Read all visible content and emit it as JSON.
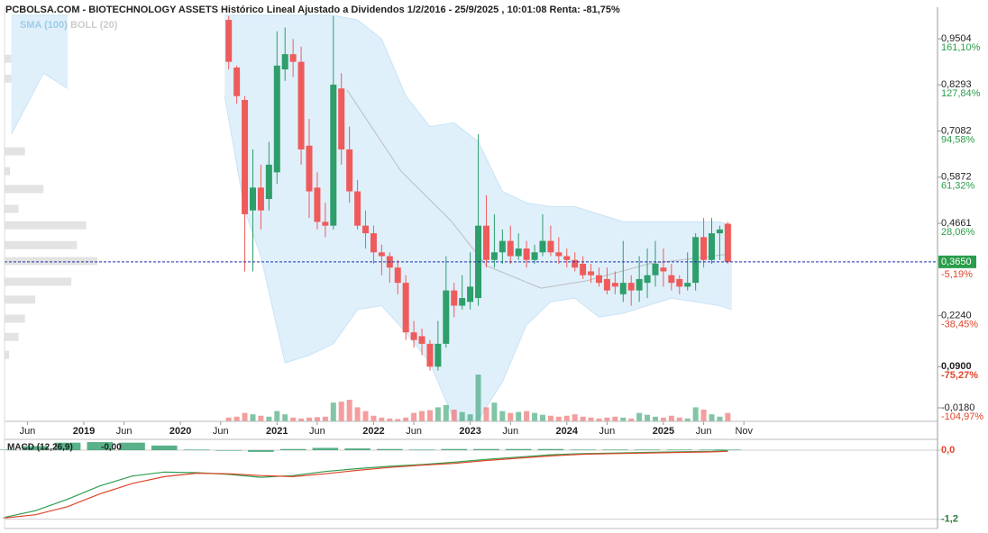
{
  "chart_data": {
    "type": "candlestick",
    "title": "PCBOLSA.COM - BIOTECHNOLOGY ASSETS Histórico Lineal Ajustado a Dividendos 1/2/2016 - 25/9/2025 , 10:01:08 Renta: -81,75%",
    "up_color": "#2e9e6a",
    "down_color": "#ef5b5b",
    "x": [
      18,
      19,
      20,
      21,
      22,
      23,
      24,
      25,
      26,
      27,
      28,
      29,
      30,
      31,
      32,
      33,
      34,
      35,
      36,
      37,
      38,
      39,
      40,
      41,
      42,
      43,
      44,
      45,
      46,
      47,
      48,
      49,
      50,
      51,
      52,
      53,
      54,
      55,
      56,
      57,
      58,
      59,
      60,
      61,
      62,
      63,
      64,
      65,
      66,
      67,
      68,
      69,
      70,
      71,
      72,
      73,
      74,
      75,
      76,
      77,
      78,
      79,
      80
    ],
    "open": [
      1.0,
      0.875,
      0.79,
      0.5,
      0.56,
      0.53,
      0.6,
      0.87,
      0.91,
      0.89,
      0.67,
      0.56,
      0.47,
      0.46,
      0.82,
      0.66,
      0.55,
      0.46,
      0.44,
      0.39,
      0.38,
      0.35,
      0.31,
      0.18,
      0.17,
      0.15,
      0.09,
      0.15,
      0.29,
      0.25,
      0.26,
      0.27,
      0.46,
      0.37,
      0.39,
      0.42,
      0.38,
      0.4,
      0.37,
      0.39,
      0.42,
      0.39,
      0.38,
      0.37,
      0.36,
      0.34,
      0.33,
      0.32,
      0.31,
      0.28,
      0.31,
      0.29,
      0.31,
      0.33,
      0.35,
      0.33,
      0.32,
      0.3,
      0.31,
      0.43,
      0.37,
      0.44,
      0.465
    ],
    "high": [
      1.01,
      0.88,
      0.8,
      0.66,
      0.62,
      0.68,
      0.97,
      0.98,
      0.95,
      0.93,
      0.74,
      0.6,
      0.52,
      1.01,
      0.86,
      0.72,
      0.58,
      0.5,
      0.46,
      0.41,
      0.39,
      0.37,
      0.33,
      0.21,
      0.19,
      0.16,
      0.21,
      0.38,
      0.31,
      0.33,
      0.39,
      0.7,
      0.54,
      0.49,
      0.45,
      0.46,
      0.44,
      0.42,
      0.41,
      0.49,
      0.46,
      0.43,
      0.4,
      0.39,
      0.38,
      0.36,
      0.35,
      0.35,
      0.34,
      0.42,
      0.33,
      0.38,
      0.4,
      0.42,
      0.4,
      0.36,
      0.33,
      0.39,
      0.44,
      0.48,
      0.48,
      0.46,
      0.47
    ],
    "low": [
      0.87,
      0.78,
      0.34,
      0.34,
      0.45,
      0.5,
      0.57,
      0.84,
      0.85,
      0.62,
      0.48,
      0.45,
      0.43,
      0.45,
      0.62,
      0.52,
      0.45,
      0.4,
      0.36,
      0.33,
      0.31,
      0.28,
      0.16,
      0.14,
      0.12,
      0.08,
      0.08,
      0.14,
      0.22,
      0.24,
      0.24,
      0.25,
      0.35,
      0.35,
      0.36,
      0.36,
      0.37,
      0.35,
      0.36,
      0.38,
      0.38,
      0.36,
      0.35,
      0.34,
      0.32,
      0.31,
      0.3,
      0.28,
      0.28,
      0.26,
      0.25,
      0.26,
      0.27,
      0.3,
      0.3,
      0.29,
      0.28,
      0.29,
      0.29,
      0.35,
      0.36,
      0.37,
      0.36
    ],
    "close": [
      0.89,
      0.8,
      0.49,
      0.56,
      0.5,
      0.62,
      0.88,
      0.91,
      0.89,
      0.66,
      0.55,
      0.47,
      0.46,
      0.83,
      0.66,
      0.55,
      0.46,
      0.44,
      0.39,
      0.38,
      0.35,
      0.31,
      0.18,
      0.16,
      0.15,
      0.09,
      0.15,
      0.29,
      0.25,
      0.27,
      0.3,
      0.46,
      0.37,
      0.39,
      0.42,
      0.38,
      0.4,
      0.37,
      0.39,
      0.42,
      0.39,
      0.38,
      0.37,
      0.35,
      0.33,
      0.33,
      0.31,
      0.29,
      0.3,
      0.31,
      0.29,
      0.32,
      0.33,
      0.36,
      0.34,
      0.31,
      0.3,
      0.31,
      0.43,
      0.37,
      0.44,
      0.45,
      0.365
    ],
    "volume": [
      8,
      10,
      18,
      15,
      12,
      10,
      22,
      15,
      8,
      6,
      8,
      9,
      10,
      40,
      42,
      46,
      30,
      22,
      12,
      8,
      6,
      5,
      8,
      18,
      22,
      24,
      30,
      35,
      25,
      20,
      15,
      100,
      30,
      40,
      22,
      18,
      20,
      22,
      18,
      14,
      12,
      10,
      12,
      15,
      10,
      8,
      6,
      8,
      10,
      8,
      6,
      18,
      14,
      10,
      8,
      12,
      8,
      6,
      30,
      25,
      15,
      10,
      18
    ],
    "xlim": [
      -9.85,
      106.05
    ],
    "xticks": [
      {
        "value": -7,
        "label": "Jun"
      },
      0,
      {
        "value": 5,
        "label": "Jun"
      },
      {
        "value": 12,
        "label": "2020"
      },
      {
        "value": 17,
        "label": "Jun"
      },
      {
        "value": 24,
        "label": "2021"
      },
      {
        "value": 29,
        "label": "Jun"
      },
      {
        "value": 36,
        "label": "2022"
      },
      {
        "value": 41,
        "label": "Jun"
      },
      {
        "value": 48,
        "label": "2023"
      },
      {
        "value": 53,
        "label": "Jun"
      },
      {
        "value": 60,
        "label": "2024"
      },
      {
        "value": 65,
        "label": "Jun"
      },
      {
        "value": 72,
        "label": "2025"
      },
      {
        "value": 77,
        "label": "Jun"
      },
      {
        "value": 82,
        "label": "Nov"
      }
    ],
    "x_year_zero_label": "2019",
    "ylim": [
      -0.0535,
      1.012
    ],
    "yticks": [
      {
        "value": 0.9504,
        "label": "0,9504"
      },
      {
        "value": 0.8293,
        "label": "0,8293"
      },
      {
        "value": 0.7082,
        "label": "0,7082"
      },
      {
        "value": 0.5872,
        "label": "0,5872"
      },
      {
        "value": 0.4661,
        "label": "0,4661"
      },
      {
        "value": 0.224,
        "label": "0,2240"
      },
      {
        "value": 0.09,
        "label": "0,0900"
      },
      {
        "value": -0.018,
        "label": "-0,0180"
      }
    ],
    "y_pct_labels": [
      "161,10%",
      "127,84%",
      "94,58%",
      "61,32%",
      "28,06%",
      "-38,45%",
      "-75,27%",
      "-104,97%"
    ],
    "current": {
      "value": 0.365,
      "label": "0,3650",
      "pct_label": "-5,19%",
      "color": "#2a9d4a",
      "line_color": "#1a2fb0"
    },
    "sma": {
      "name": "SMA (100)",
      "color": "#bdbdbd",
      "legend_color": "#9ecbe8",
      "x": [
        32.7,
        39.4,
        45.6,
        50,
        56.8,
        62.4,
        70.2,
        80.3
      ],
      "values": [
        0.816,
        0.603,
        0.473,
        0.355,
        0.296,
        0.315,
        0.36,
        0.386
      ]
    },
    "bollinger": {
      "name": "BOLL (20)",
      "color": "#dff0fb",
      "legend_color": "#cccccc",
      "edge_color": "#c9e3f5",
      "x": [
        -9,
        -5,
        -2,
        null,
        17.5,
        20,
        22,
        25,
        28,
        31,
        34,
        37,
        40,
        43,
        46,
        49,
        52,
        55,
        58,
        61,
        64,
        67,
        70,
        73,
        76,
        79,
        80.5
      ],
      "upper": [
        1.012,
        1.012,
        1.012,
        null,
        1.012,
        1.012,
        1.012,
        1.012,
        1.012,
        1.012,
        1.0,
        0.95,
        0.8,
        0.72,
        0.73,
        0.68,
        0.55,
        0.52,
        0.51,
        0.51,
        0.49,
        0.47,
        0.47,
        0.47,
        0.47,
        0.47,
        0.46
      ],
      "lower": [
        0.7,
        0.86,
        0.82,
        null,
        0.8,
        0.5,
        0.38,
        0.1,
        0.12,
        0.15,
        0.24,
        0.25,
        0.18,
        0.1,
        -0.05,
        -0.05,
        0.05,
        0.2,
        0.26,
        0.27,
        0.22,
        0.23,
        0.25,
        0.27,
        0.26,
        0.25,
        0.24
      ]
    },
    "volume_profile": {
      "color": "#e3e3e3",
      "levels": [
        0.898,
        0.846,
        0.655,
        0.603,
        0.556,
        0.504,
        0.461,
        0.409,
        0.367,
        0.313,
        0.266,
        0.216,
        0.168,
        0.121
      ],
      "values": [
        15,
        20,
        22,
        6,
        42,
        15,
        88,
        78,
        100,
        72,
        33,
        22,
        15,
        5
      ]
    },
    "macd": {
      "type": "line",
      "name": "MACD (12,26,9)",
      "value_label": "-0,00",
      "x": [
        -10,
        -6,
        -2,
        2,
        6,
        10,
        14,
        18,
        22,
        26,
        30,
        34,
        38,
        42,
        46,
        50,
        54,
        58,
        62,
        66,
        70,
        74,
        78,
        80
      ],
      "series": [
        {
          "color": "#2e9e4f",
          "values": [
            -1.17,
            -1.05,
            -0.85,
            -0.62,
            -0.45,
            -0.38,
            -0.39,
            -0.42,
            -0.47,
            -0.44,
            -0.37,
            -0.32,
            -0.28,
            -0.25,
            -0.21,
            -0.16,
            -0.12,
            -0.08,
            -0.06,
            -0.05,
            -0.04,
            -0.03,
            -0.02,
            -0.01
          ]
        },
        {
          "color": "#e0452a",
          "values": [
            -1.18,
            -1.12,
            -0.98,
            -0.76,
            -0.58,
            -0.46,
            -0.4,
            -0.41,
            -0.44,
            -0.46,
            -0.41,
            -0.35,
            -0.3,
            -0.26,
            -0.23,
            -0.18,
            -0.14,
            -0.1,
            -0.07,
            -0.06,
            -0.05,
            -0.04,
            -0.03,
            -0.02
          ]
        }
      ],
      "histogram": [
        0.01,
        0.07,
        0.13,
        0.14,
        0.13,
        0.08,
        0.01,
        -0.01,
        -0.03,
        0.02,
        0.04,
        0.03,
        0.02,
        0.01,
        0.02,
        0.02,
        0.02,
        0.02,
        0.01,
        0.01,
        0.01,
        0.01,
        0.01,
        0.01
      ],
      "histogram_color": "#2e9e6a",
      "ylim": [
        -1.328,
        0.156
      ],
      "yticks": [
        {
          "value": 0,
          "label": "0,0"
        },
        {
          "value": -1.2,
          "label": "-1,2"
        }
      ]
    }
  }
}
